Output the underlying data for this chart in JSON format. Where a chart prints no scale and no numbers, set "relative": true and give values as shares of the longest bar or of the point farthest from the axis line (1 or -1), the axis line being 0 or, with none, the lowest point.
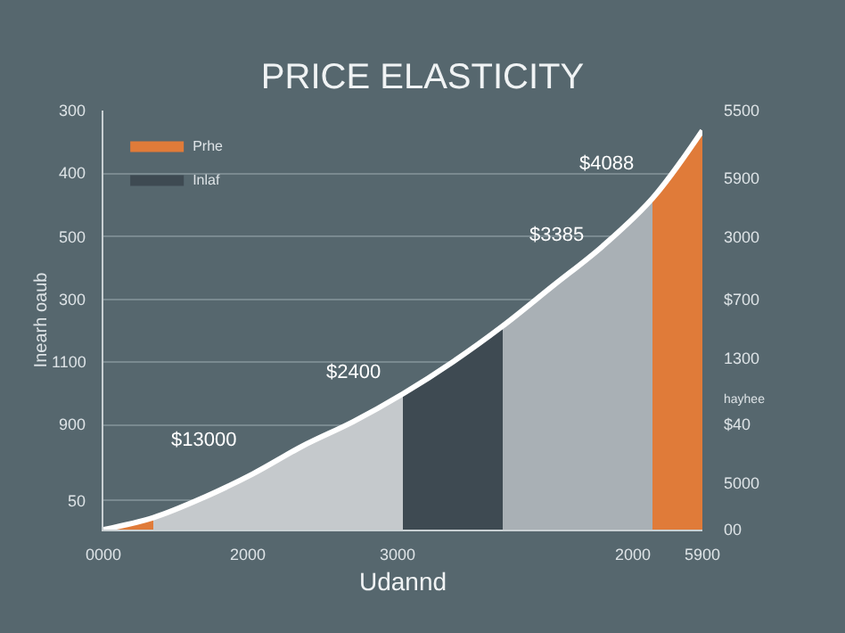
{
  "chart_data": {
    "type": "area",
    "title": "PRICE ELASTICITY",
    "xlabel": "Udannd",
    "ylabel": "Inearh oaub",
    "relative": true,
    "categories": [
      null,
      null,
      null,
      null,
      null,
      null,
      null,
      null,
      null,
      null,
      null,
      null,
      null
    ],
    "series": [
      {
        "name": "Prhe",
        "color": "#e07b39",
        "values": [
          0,
          0.03,
          null,
          null,
          null,
          null,
          null,
          null,
          null,
          null,
          null,
          null,
          null
        ]
      },
      {
        "color": "#c5c9cc",
        "values": [
          null,
          0.03,
          0.08,
          0.14,
          0.21,
          0.27,
          0.34,
          null,
          null,
          null,
          null,
          null,
          null
        ]
      },
      {
        "name": "Inlaf",
        "color": "#3e4a52",
        "values": [
          null,
          null,
          null,
          null,
          null,
          null,
          0.34,
          0.42,
          0.51,
          null,
          null,
          null,
          null
        ]
      },
      {
        "color": "#a9b0b5",
        "values": [
          null,
          null,
          null,
          null,
          null,
          null,
          null,
          null,
          0.51,
          0.61,
          0.71,
          0.83,
          null
        ]
      },
      {
        "color": "#e07b39",
        "values": [
          null,
          null,
          null,
          null,
          null,
          null,
          null,
          null,
          null,
          null,
          null,
          0.83,
          1
        ]
      },
      {
        "type": "line",
        "color": "#ffffff",
        "values": [
          0,
          0.03,
          0.08,
          0.14,
          0.21,
          0.27,
          0.34,
          0.42,
          0.51,
          0.61,
          0.71,
          0.83,
          1
        ]
      }
    ],
    "annotations": [
      "$13000",
      "$2400",
      "$3385",
      "$4088",
      "hayhee",
      "300",
      "400",
      "500",
      "300",
      "1100",
      "900",
      "50",
      "5500",
      "5900",
      "3000",
      "$700",
      "1300",
      "$40",
      "5000",
      "00",
      "0000",
      "2000",
      "3000",
      "2000",
      "5900"
    ],
    "grid": "y",
    "legend": "top left",
    "marker": "none",
    "line_style": "solid"
  }
}
